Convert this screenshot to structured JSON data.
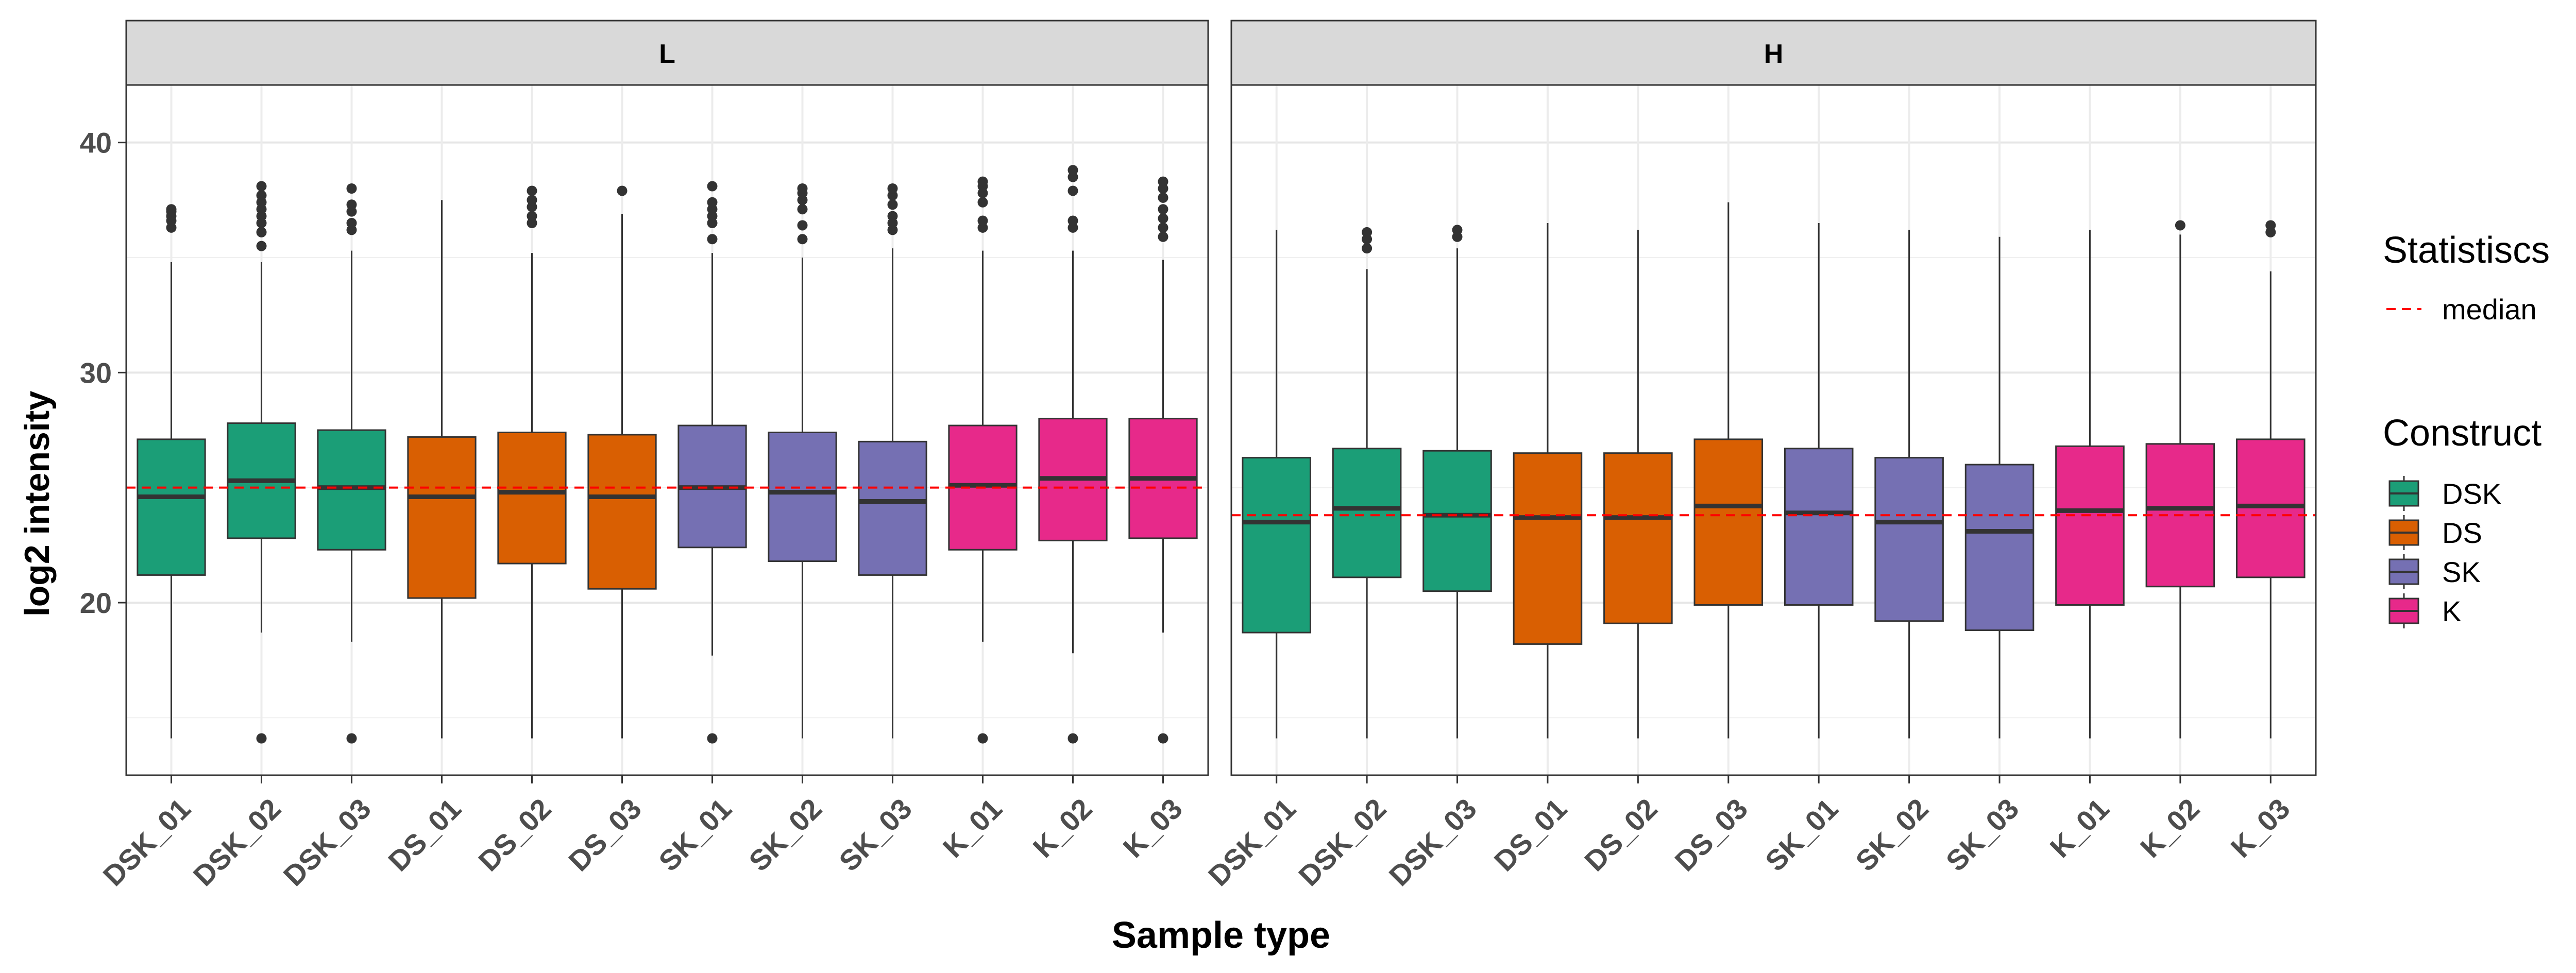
{
  "chart_data": {
    "type": "boxplot",
    "xlabel": "Sample type",
    "ylabel": "log2 intensity",
    "ylim": [
      12.5,
      42.5
    ],
    "yticks": [
      20,
      30,
      40
    ],
    "grid": true,
    "legend_position": "right",
    "categories": [
      "DSK_01",
      "DSK_02",
      "DSK_03",
      "DS_01",
      "DS_02",
      "DS_03",
      "SK_01",
      "SK_02",
      "SK_03",
      "K_01",
      "K_02",
      "K_03"
    ],
    "colors": {
      "DSK": "#1b9e77",
      "DS": "#d95f02",
      "SK": "#7570b3",
      "K": "#e7298a"
    },
    "median_line_color": "#ff0000",
    "facets": [
      {
        "label": "L",
        "median": 25.0,
        "boxes": [
          {
            "sample": "DSK_01",
            "construct": "DSK",
            "q1": 21.2,
            "med": 24.6,
            "q3": 27.1,
            "lo": 14.1,
            "hi": 34.8,
            "outliers": [
              36.3,
              36.6,
              36.8,
              37.0,
              37.1
            ]
          },
          {
            "sample": "DSK_02",
            "construct": "DSK",
            "q1": 22.8,
            "med": 25.3,
            "q3": 27.8,
            "lo": 18.7,
            "hi": 34.8,
            "outliers": [
              14.1,
              35.5,
              36.1,
              36.5,
              36.8,
              37.1,
              37.4,
              37.7,
              38.1
            ]
          },
          {
            "sample": "DSK_03",
            "construct": "DSK",
            "q1": 22.3,
            "med": 25.0,
            "q3": 27.5,
            "lo": 18.3,
            "hi": 35.3,
            "outliers": [
              14.1,
              36.2,
              36.5,
              37.0,
              37.3,
              38.0
            ]
          },
          {
            "sample": "DS_01",
            "construct": "DS",
            "q1": 20.2,
            "med": 24.6,
            "q3": 27.2,
            "lo": 14.1,
            "hi": 37.5,
            "outliers": []
          },
          {
            "sample": "DS_02",
            "construct": "DS",
            "q1": 21.7,
            "med": 24.8,
            "q3": 27.4,
            "lo": 14.1,
            "hi": 35.2,
            "outliers": [
              36.5,
              36.8,
              37.2,
              37.5,
              37.9
            ]
          },
          {
            "sample": "DS_03",
            "construct": "DS",
            "q1": 20.6,
            "med": 24.6,
            "q3": 27.3,
            "lo": 14.1,
            "hi": 36.9,
            "outliers": [
              37.9
            ]
          },
          {
            "sample": "SK_01",
            "construct": "SK",
            "q1": 22.4,
            "med": 25.0,
            "q3": 27.7,
            "lo": 17.7,
            "hi": 35.2,
            "outliers": [
              14.1,
              35.8,
              36.5,
              36.8,
              37.1,
              37.4,
              38.1
            ]
          },
          {
            "sample": "SK_02",
            "construct": "SK",
            "q1": 21.8,
            "med": 24.8,
            "q3": 27.4,
            "lo": 14.1,
            "hi": 35.0,
            "outliers": [
              35.8,
              36.4,
              37.1,
              37.5,
              37.8,
              38.0
            ]
          },
          {
            "sample": "SK_03",
            "construct": "SK",
            "q1": 21.2,
            "med": 24.4,
            "q3": 27.0,
            "lo": 14.1,
            "hi": 35.4,
            "outliers": [
              36.2,
              36.5,
              36.8,
              37.3,
              37.7,
              38.0
            ]
          },
          {
            "sample": "K_01",
            "construct": "K",
            "q1": 22.3,
            "med": 25.1,
            "q3": 27.7,
            "lo": 18.3,
            "hi": 35.3,
            "outliers": [
              14.1,
              36.3,
              36.6,
              37.4,
              37.8,
              38.1,
              38.3
            ]
          },
          {
            "sample": "K_02",
            "construct": "K",
            "q1": 22.7,
            "med": 25.4,
            "q3": 28.0,
            "lo": 17.8,
            "hi": 35.3,
            "outliers": [
              14.1,
              36.3,
              36.6,
              37.9,
              38.5,
              38.8
            ]
          },
          {
            "sample": "K_03",
            "construct": "K",
            "q1": 22.8,
            "med": 25.4,
            "q3": 28.0,
            "lo": 18.7,
            "hi": 34.9,
            "outliers": [
              14.1,
              35.9,
              36.3,
              36.7,
              37.1,
              37.6,
              38.0,
              38.3
            ]
          }
        ]
      },
      {
        "label": "H",
        "median": 23.8,
        "boxes": [
          {
            "sample": "DSK_01",
            "construct": "DSK",
            "q1": 18.7,
            "med": 23.5,
            "q3": 26.3,
            "lo": 14.1,
            "hi": 36.2,
            "outliers": []
          },
          {
            "sample": "DSK_02",
            "construct": "DSK",
            "q1": 21.1,
            "med": 24.1,
            "q3": 26.7,
            "lo": 14.1,
            "hi": 34.5,
            "outliers": [
              35.4,
              35.8,
              36.1
            ]
          },
          {
            "sample": "DSK_03",
            "construct": "DSK",
            "q1": 20.5,
            "med": 23.8,
            "q3": 26.6,
            "lo": 14.1,
            "hi": 35.4,
            "outliers": [
              35.9,
              36.2
            ]
          },
          {
            "sample": "DS_01",
            "construct": "DS",
            "q1": 18.2,
            "med": 23.7,
            "q3": 26.5,
            "lo": 14.1,
            "hi": 36.5,
            "outliers": []
          },
          {
            "sample": "DS_02",
            "construct": "DS",
            "q1": 19.1,
            "med": 23.7,
            "q3": 26.5,
            "lo": 14.1,
            "hi": 36.2,
            "outliers": []
          },
          {
            "sample": "DS_03",
            "construct": "DS",
            "q1": 19.9,
            "med": 24.2,
            "q3": 27.1,
            "lo": 14.1,
            "hi": 37.4,
            "outliers": []
          },
          {
            "sample": "SK_01",
            "construct": "SK",
            "q1": 19.9,
            "med": 23.9,
            "q3": 26.7,
            "lo": 14.1,
            "hi": 36.5,
            "outliers": []
          },
          {
            "sample": "SK_02",
            "construct": "SK",
            "q1": 19.2,
            "med": 23.5,
            "q3": 26.3,
            "lo": 14.1,
            "hi": 36.2,
            "outliers": []
          },
          {
            "sample": "SK_03",
            "construct": "SK",
            "q1": 18.8,
            "med": 23.1,
            "q3": 26.0,
            "lo": 14.1,
            "hi": 35.9,
            "outliers": []
          },
          {
            "sample": "K_01",
            "construct": "K",
            "q1": 19.9,
            "med": 24.0,
            "q3": 26.8,
            "lo": 14.1,
            "hi": 36.2,
            "outliers": []
          },
          {
            "sample": "K_02",
            "construct": "K",
            "q1": 20.7,
            "med": 24.1,
            "q3": 26.9,
            "lo": 14.1,
            "hi": 36.0,
            "outliers": [
              36.4
            ]
          },
          {
            "sample": "K_03",
            "construct": "K",
            "q1": 21.1,
            "med": 24.2,
            "q3": 27.1,
            "lo": 14.1,
            "hi": 34.4,
            "outliers": [
              36.1,
              36.4
            ]
          }
        ]
      }
    ],
    "legend": {
      "statistics_title": "Statistiscs",
      "statistics_item": "median",
      "construct_title": "Construct",
      "construct_items": [
        {
          "label": "DSK",
          "color": "#1b9e77"
        },
        {
          "label": "DS",
          "color": "#d95f02"
        },
        {
          "label": "SK",
          "color": "#7570b3"
        },
        {
          "label": "K",
          "color": "#e7298a"
        }
      ]
    }
  }
}
